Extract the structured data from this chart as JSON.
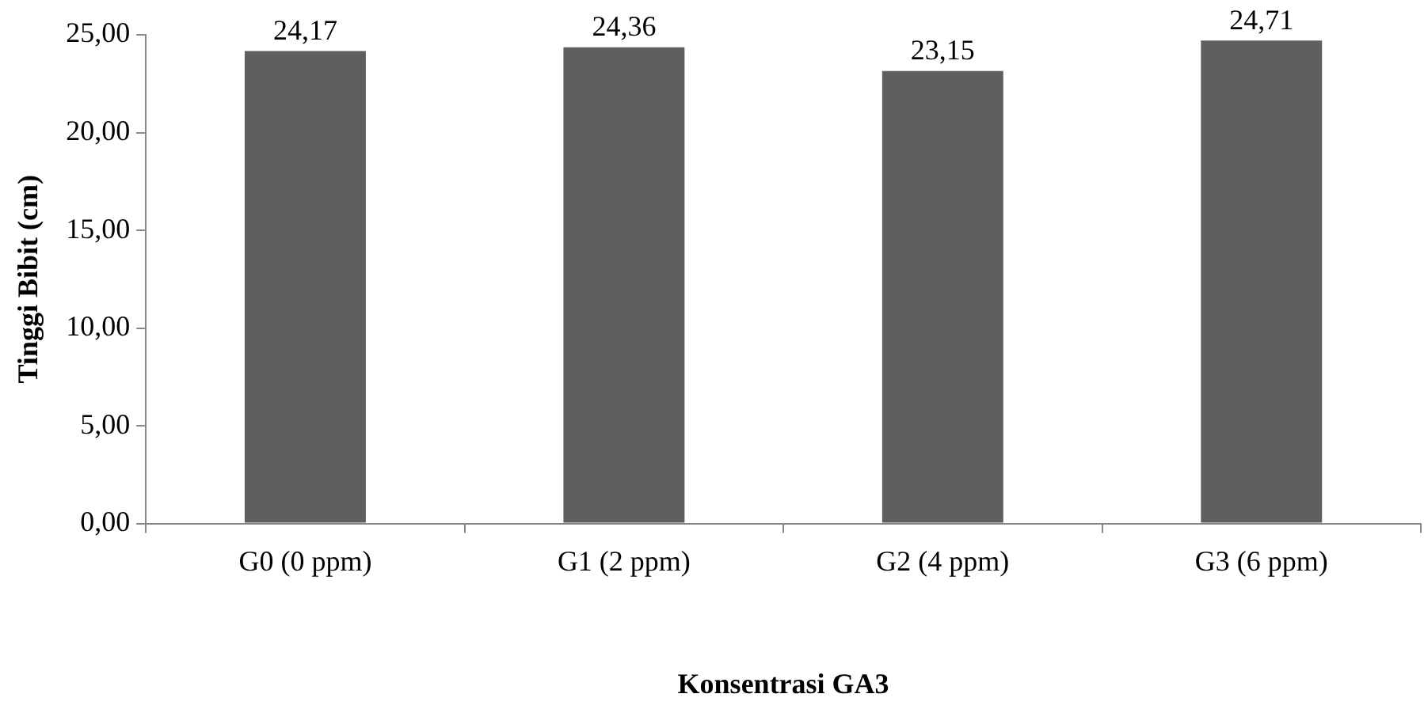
{
  "chart_data": {
    "type": "bar",
    "xlabel": "Konsentrasi GA3",
    "ylabel": "Tinggi Bibit (cm)",
    "categories": [
      "G0 (0 ppm)",
      "G1 (2 ppm)",
      "G2 (4 ppm)",
      "G3 (6 ppm)"
    ],
    "values": [
      24.17,
      24.36,
      23.15,
      24.71
    ],
    "value_labels": [
      "24,17",
      "24,36",
      "23,15",
      "24,71"
    ],
    "color": "#5f5f5f",
    "ylim": [
      0,
      25
    ],
    "yticks": [
      {
        "value": 0,
        "label": "0,00"
      },
      {
        "value": 5,
        "label": "5,00"
      },
      {
        "value": 10,
        "label": "10,00"
      },
      {
        "value": 15,
        "label": "15,00"
      },
      {
        "value": 20,
        "label": "20,00"
      },
      {
        "value": 25,
        "label": "25,00"
      }
    ],
    "grid": false,
    "legend": false
  }
}
